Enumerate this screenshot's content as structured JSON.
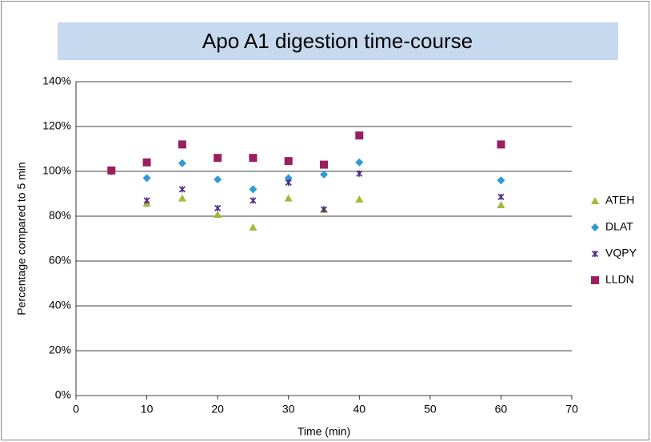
{
  "chart_data": {
    "type": "scatter",
    "title": "Apo A1 digestion time-course",
    "x_label": "Time (min)",
    "y_label": "Percentage compared to 5 min",
    "x": [
      5,
      10,
      15,
      20,
      25,
      30,
      35,
      40,
      60
    ],
    "series": [
      {
        "name": "ATEH",
        "color": "#9fba3a",
        "marker": "triangle",
        "values": [
          100,
          85.7,
          88,
          80.7,
          75,
          88,
          83,
          87.5,
          85
        ]
      },
      {
        "name": "DLAT",
        "color": "#2e9ad6",
        "marker": "diamond",
        "values": [
          100,
          97,
          103.6,
          96.4,
          92,
          97,
          98.6,
          104,
          96
        ]
      },
      {
        "name": "VQPY",
        "color": "#4b2a85",
        "marker": "star",
        "values": [
          100,
          87,
          92,
          83.6,
          87,
          95,
          83,
          99,
          88.6
        ]
      },
      {
        "name": "LLDN",
        "color": "#9b1f5e",
        "marker": "square",
        "values": [
          100.4,
          104,
          112,
          106,
          106,
          104.6,
          103,
          116,
          112
        ]
      }
    ],
    "xlim": [
      0,
      70
    ],
    "xticks": [
      0,
      10,
      20,
      30,
      40,
      50,
      60,
      70
    ],
    "ylim": [
      0,
      140
    ],
    "yticks": [
      {
        "value": 0,
        "label": "0%"
      },
      {
        "value": 20,
        "label": "20%"
      },
      {
        "value": 40,
        "label": "40%"
      },
      {
        "value": 60,
        "label": "60%"
      },
      {
        "value": 80,
        "label": "80%"
      },
      {
        "value": 100,
        "label": "100%"
      },
      {
        "value": 120,
        "label": "120%"
      },
      {
        "value": 140,
        "label": "140%"
      }
    ],
    "grid": true,
    "legend": "right"
  }
}
